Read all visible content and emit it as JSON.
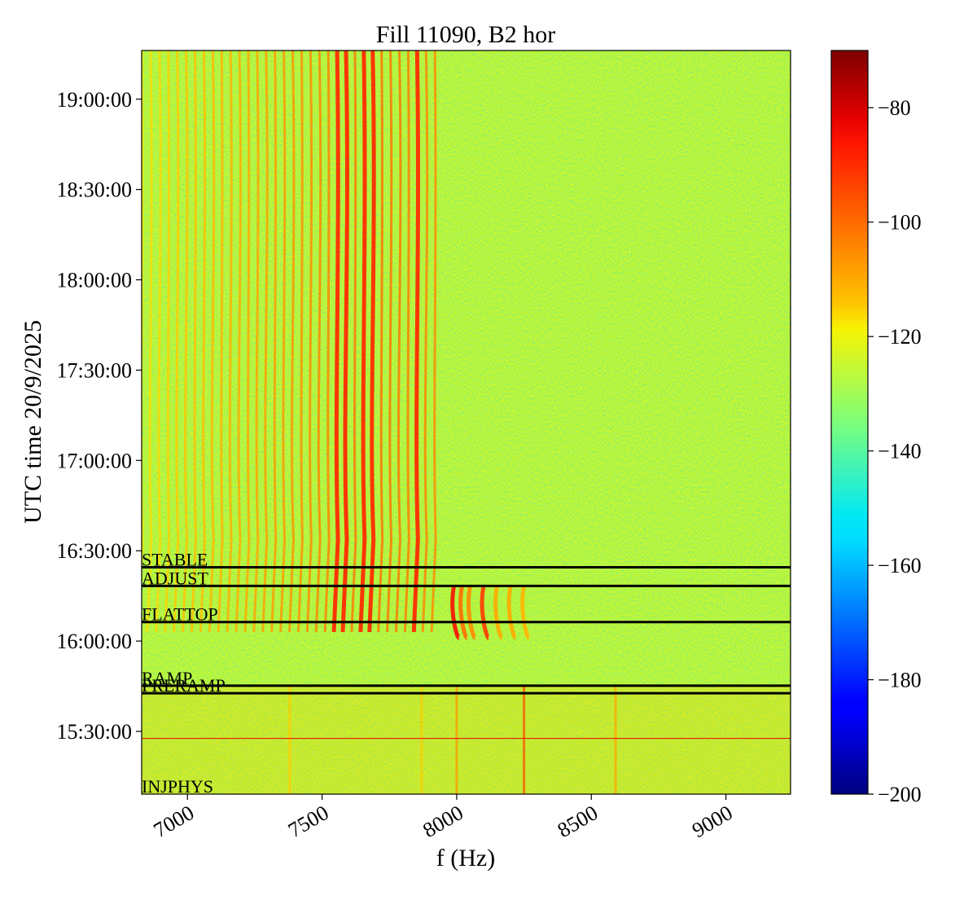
{
  "chart_data": {
    "type": "heatmap",
    "title": "Fill 11090, B2 hor",
    "xlabel": "f (Hz)",
    "ylabel": "UTC time 20/9/2025",
    "colormap": "jet",
    "xlim": [
      6830,
      9240
    ],
    "ylim": [
      "15:09:10",
      "19:16:10"
    ],
    "xticks": [
      {
        "value": 7000,
        "label": "7000"
      },
      {
        "value": 7500,
        "label": "7500"
      },
      {
        "value": 8000,
        "label": "8000"
      },
      {
        "value": 8500,
        "label": "8500"
      },
      {
        "value": 9000,
        "label": "9000"
      }
    ],
    "yticks": [
      {
        "value": "19:00:00",
        "label": "19:00:00"
      },
      {
        "value": "18:30:00",
        "label": "18:30:00"
      },
      {
        "value": "18:00:00",
        "label": "18:00:00"
      },
      {
        "value": "17:30:00",
        "label": "17:30:00"
      },
      {
        "value": "17:00:00",
        "label": "17:00:00"
      },
      {
        "value": "16:30:00",
        "label": "16:30:00"
      },
      {
        "value": "16:00:00",
        "label": "16:00:00"
      },
      {
        "value": "15:30:00",
        "label": "15:30:00"
      }
    ],
    "colorbar": {
      "range": [
        -200,
        -70
      ],
      "ticks": [
        {
          "value": -80,
          "label": "−80"
        },
        {
          "value": -100,
          "label": "−100"
        },
        {
          "value": -120,
          "label": "−120"
        },
        {
          "value": -140,
          "label": "−140"
        },
        {
          "value": -160,
          "label": "−160"
        },
        {
          "value": -180,
          "label": "−180"
        },
        {
          "value": -200,
          "label": "−200"
        }
      ]
    },
    "background_level": -125,
    "phase_markers": [
      {
        "label": "STABLE",
        "time": "16:24:30"
      },
      {
        "label": "ADJUST",
        "time": "16:18:20"
      },
      {
        "label": "FLATTOP",
        "time": "16:06:20"
      },
      {
        "label": "RAMP",
        "time": "15:45:10"
      },
      {
        "label": "PRERAMP",
        "time": "15:42:40"
      },
      {
        "label": "INJPHYS",
        "time": "15:09:10"
      }
    ],
    "lines": {
      "spacing_hz": 33,
      "start_hz": 6830,
      "end_hz": 7930,
      "strong": [
        7540,
        7600,
        7640,
        7700,
        7840
      ],
      "end_time": "16:03:00",
      "flattop_lines": [
        {
          "f": 7990,
          "amp": -85
        },
        {
          "f": 8020,
          "amp": -100
        },
        {
          "f": 8050,
          "amp": -105
        },
        {
          "f": 8100,
          "amp": -92
        },
        {
          "f": 8150,
          "amp": -110
        },
        {
          "f": 8200,
          "amp": -110
        },
        {
          "f": 8250,
          "amp": -112
        }
      ],
      "low_lines": [
        {
          "f": 8000,
          "amp": -105
        },
        {
          "f": 8250,
          "amp": -90
        },
        {
          "f": 8590,
          "amp": -108
        },
        {
          "f": 7380,
          "amp": -115
        },
        {
          "f": 7870,
          "amp": -115
        }
      ],
      "horizontal_line_time": "15:27:40"
    }
  }
}
